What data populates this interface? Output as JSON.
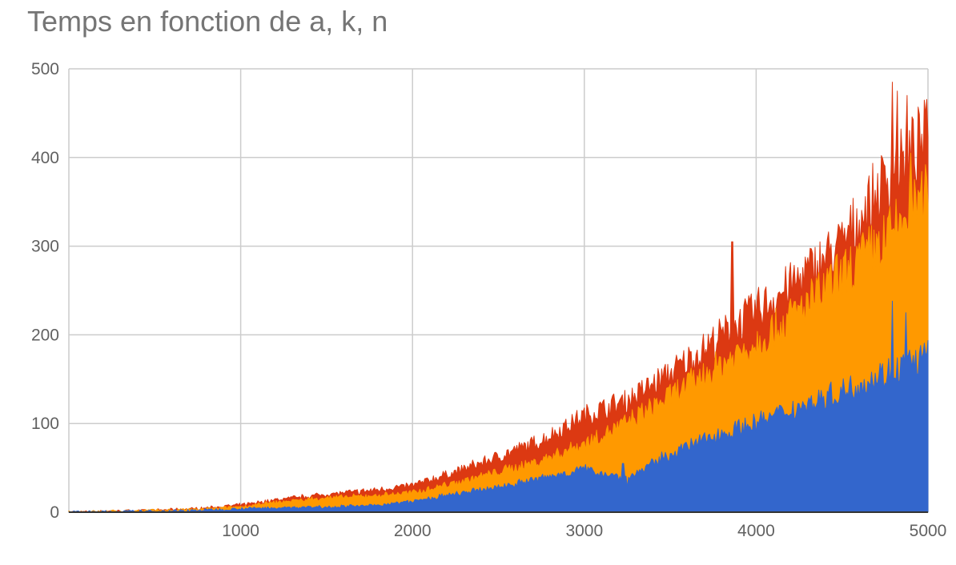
{
  "chart_data": {
    "type": "area",
    "title": "Temps en fonction de a, k, n",
    "xlabel": "",
    "ylabel": "",
    "xlim": [
      0,
      5000
    ],
    "ylim": [
      0,
      500
    ],
    "x_ticks": [
      "1000",
      "2000",
      "3000",
      "4000",
      "5000"
    ],
    "y_ticks": [
      "0",
      "100",
      "200",
      "300",
      "400",
      "500"
    ],
    "grid": true,
    "legend": "none",
    "x": [
      0,
      250,
      500,
      750,
      1000,
      1250,
      1500,
      1750,
      2000,
      2250,
      2500,
      2750,
      3000,
      3250,
      3500,
      3750,
      4000,
      4250,
      4500,
      4750,
      5000
    ],
    "series": [
      {
        "color": "#dc3912",
        "values": [
          0,
          1,
          2,
          4,
          8,
          15,
          20,
          24,
          30,
          45,
          62,
          80,
          108,
          125,
          155,
          190,
          225,
          260,
          300,
          370,
          420
        ],
        "spikes": [
          [
            3860,
            305
          ],
          [
            4790,
            485
          ],
          [
            4820,
            475
          ],
          [
            4880,
            470
          ]
        ]
      },
      {
        "color": "#ff9900",
        "values": [
          0,
          1,
          2,
          3,
          6,
          12,
          16,
          18,
          22,
          33,
          45,
          58,
          77,
          100,
          130,
          160,
          190,
          225,
          265,
          305,
          355
        ],
        "spikes": [
          [
            4900,
            405
          ]
        ]
      },
      {
        "color": "#3366cc",
        "values": [
          0,
          0.5,
          1,
          2,
          4,
          5,
          6,
          7,
          12,
          20,
          28,
          38,
          48,
          38,
          65,
          85,
          100,
          118,
          135,
          155,
          175
        ],
        "spikes": [
          [
            3225,
            55
          ],
          [
            3250,
            28
          ],
          [
            4790,
            238
          ],
          [
            4870,
            225
          ]
        ]
      }
    ]
  }
}
